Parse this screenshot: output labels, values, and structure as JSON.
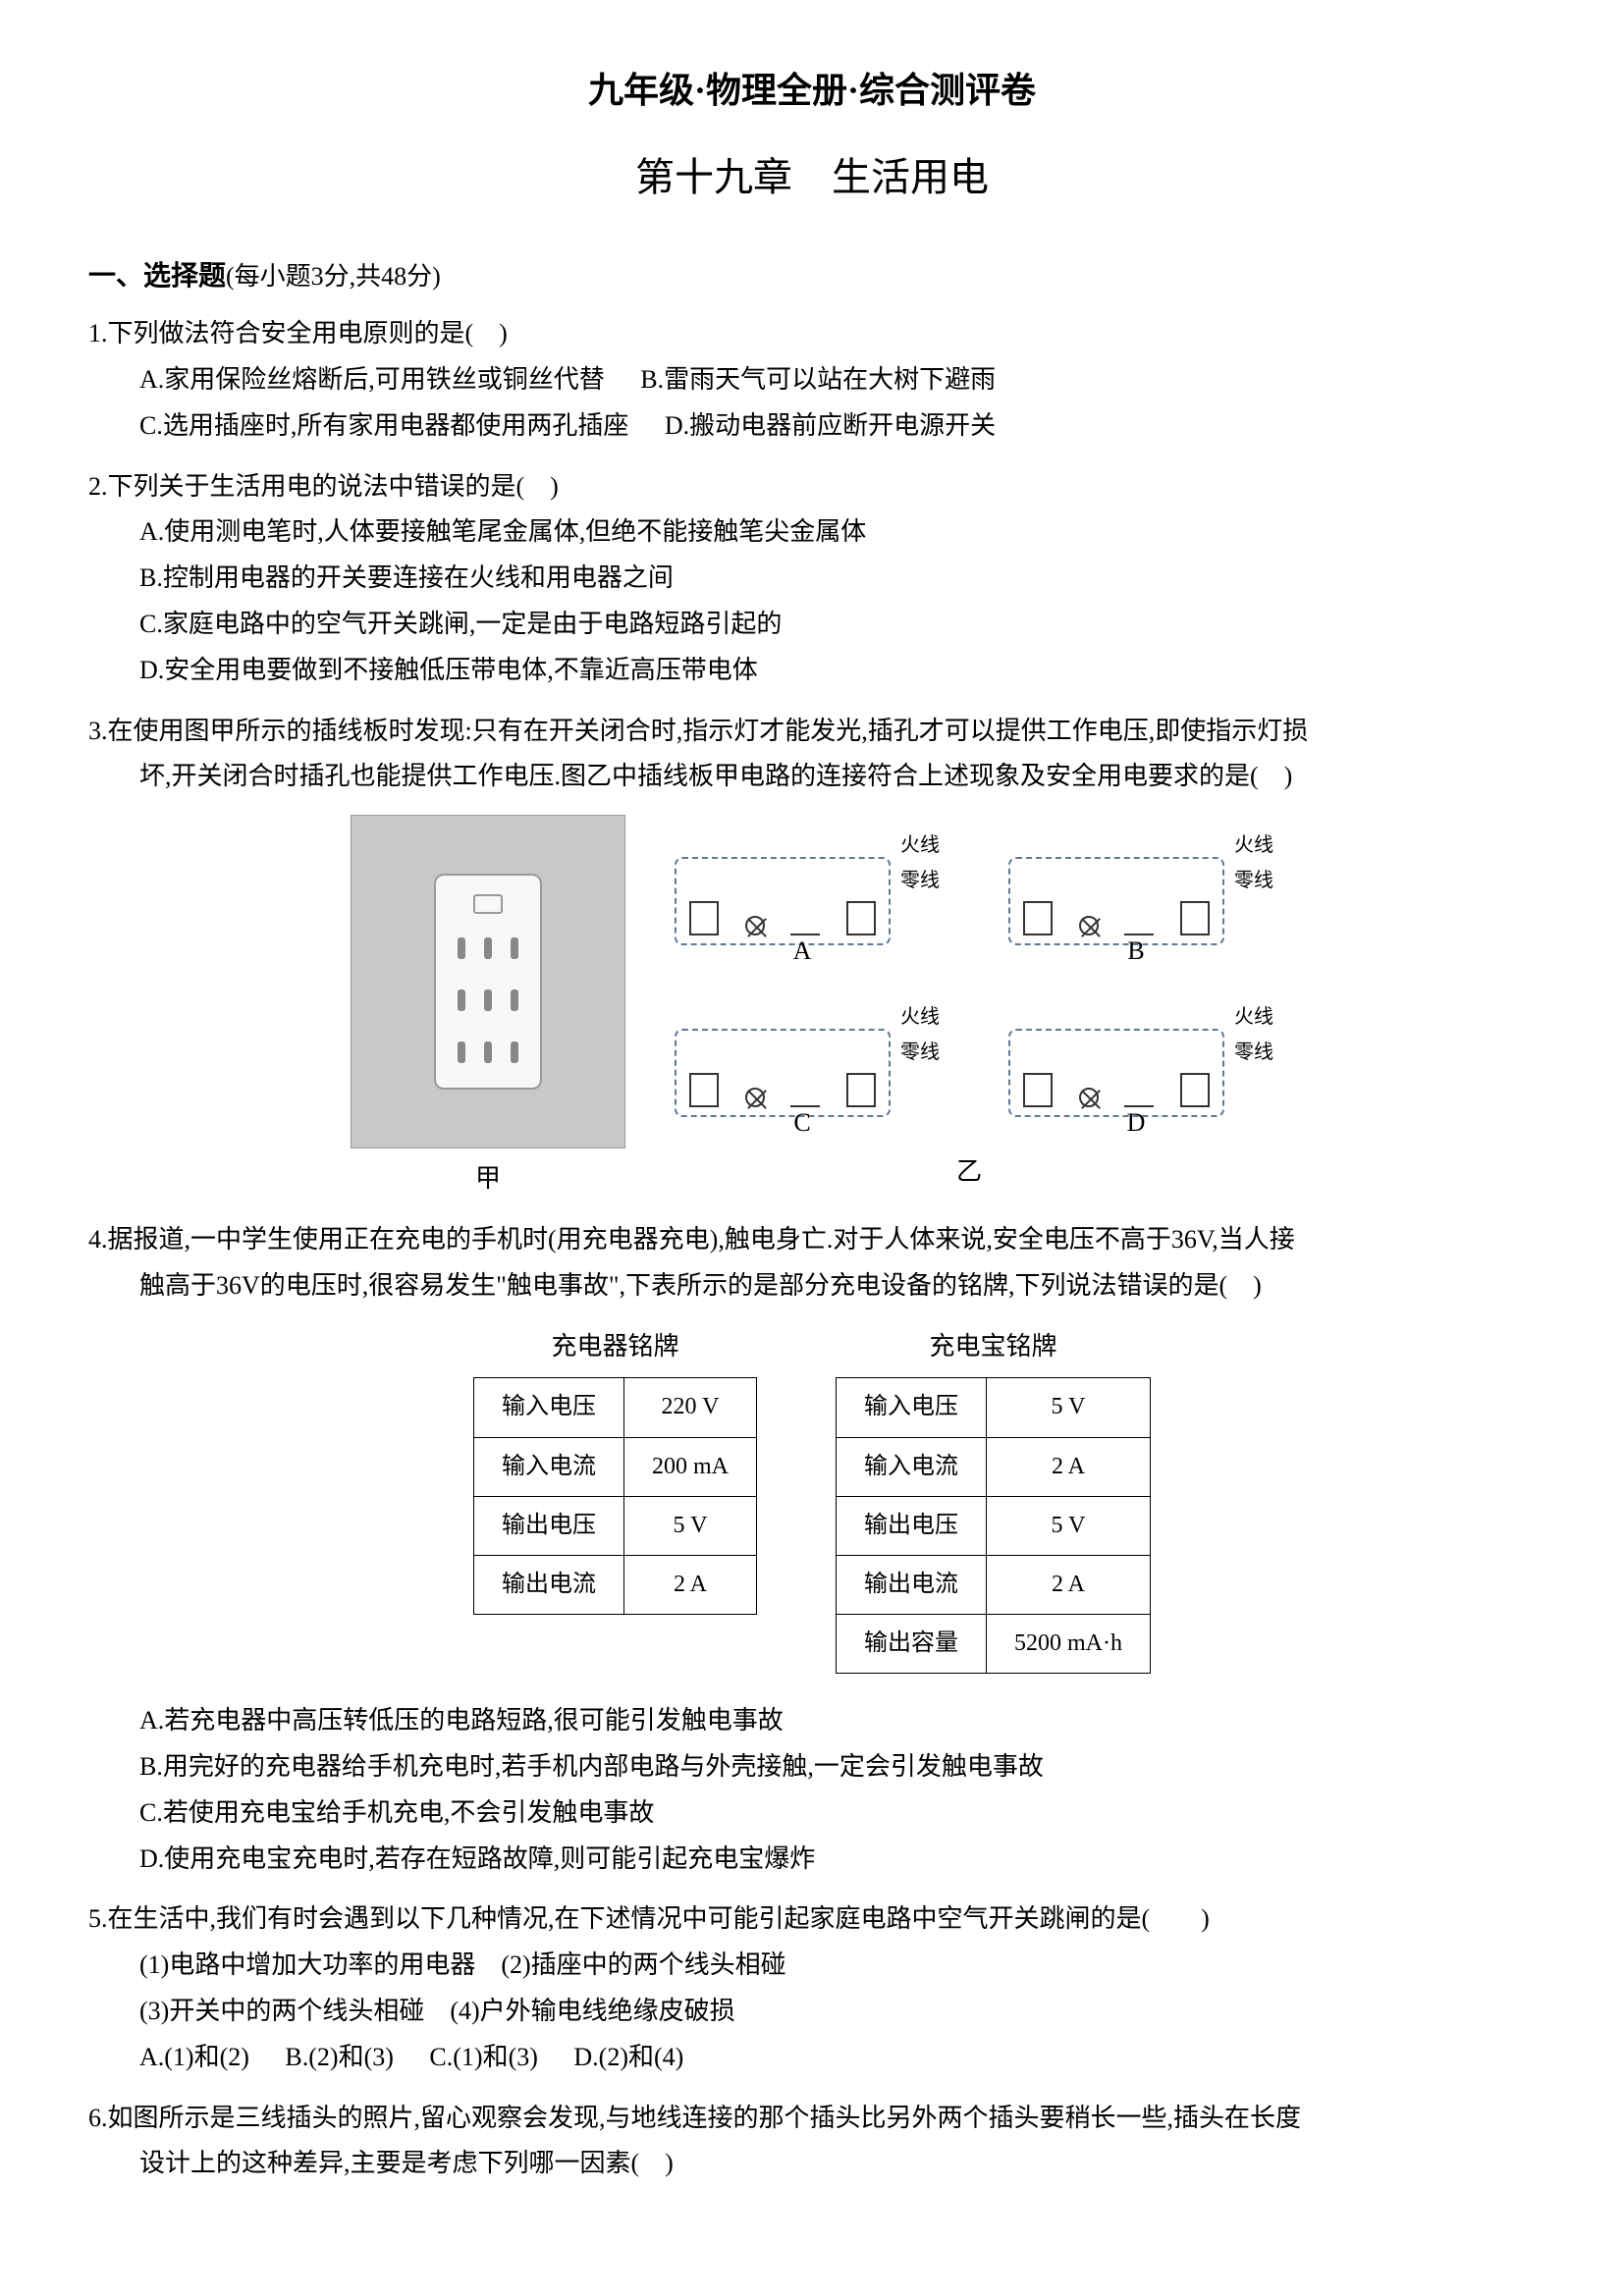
{
  "header": {
    "main_title": "九年级·物理全册·综合测评卷",
    "sub_title": "第十九章　生活用电"
  },
  "section1": {
    "label": "一、选择题",
    "scoring": "(每小题3分,共48分)"
  },
  "q1": {
    "stem": "1.下列做法符合安全用电原则的是(　)",
    "optA": "A.家用保险丝熔断后,可用铁丝或铜丝代替",
    "optB": "B.雷雨天气可以站在大树下避雨",
    "optC": "C.选用插座时,所有家用电器都使用两孔插座",
    "optD": "D.搬动电器前应断开电源开关"
  },
  "q2": {
    "stem": "2.下列关于生活用电的说法中错误的是(　)",
    "optA": "A.使用测电笔时,人体要接触笔尾金属体,但绝不能接触笔尖金属体",
    "optB": "B.控制用电器的开关要连接在火线和用电器之间",
    "optC": "C.家庭电路中的空气开关跳闸,一定是由于电路短路引起的",
    "optD": "D.安全用电要做到不接触低压带电体,不靠近高压带电体"
  },
  "q3": {
    "stem": "3.在使用图甲所示的插线板时发现:只有在开关闭合时,指示灯才能发光,插孔才可以提供工作电压,即使指示灯损",
    "stem2": "坏,开关闭合时插孔也能提供工作电压.图乙中插线板甲电路的连接符合上述现象及安全用电要求的是(　)",
    "fig_jia": "甲",
    "fig_yi": "乙",
    "wire_hot": "火线",
    "wire_neutral": "零线",
    "labA": "A",
    "labB": "B",
    "labC": "C",
    "labD": "D"
  },
  "q4": {
    "stem": "4.据报道,一中学生使用正在充电的手机时(用充电器充电),触电身亡.对于人体来说,安全电压不高于36V,当人接",
    "stem2": "触高于36V的电压时,很容易发生\"触电事故\",下表所示的是部分充电设备的铭牌,下列说法错误的是(　)",
    "table1_caption": "充电器铭牌",
    "table2_caption": "充电宝铭牌",
    "t1r1c1": "输入电压",
    "t1r1c2": "220 V",
    "t1r2c1": "输入电流",
    "t1r2c2": "200 mA",
    "t1r3c1": "输出电压",
    "t1r3c2": "5 V",
    "t1r4c1": "输出电流",
    "t1r4c2": "2 A",
    "t2r1c1": "输入电压",
    "t2r1c2": "5 V",
    "t2r2c1": "输入电流",
    "t2r2c2": "2 A",
    "t2r3c1": "输出电压",
    "t2r3c2": "5 V",
    "t2r4c1": "输出电流",
    "t2r4c2": "2 A",
    "t2r5c1": "输出容量",
    "t2r5c2": "5200 mA·h",
    "optA": "A.若充电器中高压转低压的电路短路,很可能引发触电事故",
    "optB": "B.用完好的充电器给手机充电时,若手机内部电路与外壳接触,一定会引发触电事故",
    "optC": "C.若使用充电宝给手机充电,不会引发触电事故",
    "optD": "D.使用充电宝充电时,若存在短路故障,则可能引起充电宝爆炸"
  },
  "q5": {
    "stem": "5.在生活中,我们有时会遇到以下几种情况,在下述情况中可能引起家庭电路中空气开关跳闸的是(　　)",
    "s1": "(1)电路中增加大功率的用电器　(2)插座中的两个线头相碰",
    "s2": "(3)开关中的两个线头相碰　(4)户外输电线绝缘皮破损",
    "optA": "A.(1)和(2)",
    "optB": "B.(2)和(3)",
    "optC": "C.(1)和(3)",
    "optD": "D.(2)和(4)"
  },
  "q6": {
    "stem": "6.如图所示是三线插头的照片,留心观察会发现,与地线连接的那个插头比另外两个插头要稍长一些,插头在长度",
    "stem2": "设计上的这种差异,主要是考虑下列哪一因素(　)"
  }
}
